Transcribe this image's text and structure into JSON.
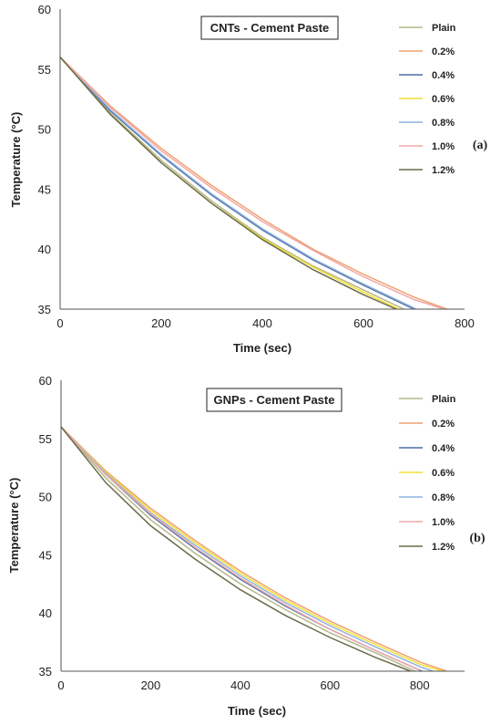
{
  "chart_data": [
    {
      "type": "line",
      "title": "CNTs - Cement Paste",
      "panel_label": "(a)",
      "xlabel": "Time (sec)",
      "ylabel": "Temperature (°C)",
      "xlim": [
        0,
        800
      ],
      "ylim": [
        35,
        60
      ],
      "xticks": [
        0,
        200,
        400,
        600,
        800
      ],
      "yticks": [
        35,
        40,
        45,
        50,
        55,
        60
      ],
      "grid": false,
      "legend_position": "right",
      "series": [
        {
          "name": "Plain",
          "color": "#b5b78a",
          "x": [
            0,
            100,
            200,
            300,
            400,
            500,
            600,
            680
          ],
          "y": [
            56,
            51.3,
            47.4,
            44.0,
            41.0,
            38.6,
            36.6,
            35.0
          ]
        },
        {
          "name": "0.2%",
          "color": "#f0a070",
          "x": [
            0,
            100,
            200,
            300,
            400,
            500,
            600,
            700,
            765
          ],
          "y": [
            56,
            51.9,
            48.4,
            45.3,
            42.5,
            40.0,
            37.9,
            36.0,
            35.0
          ]
        },
        {
          "name": "0.4%",
          "color": "#4a6fa5",
          "x": [
            0,
            100,
            200,
            300,
            400,
            500,
            600,
            700
          ],
          "y": [
            56,
            51.5,
            47.8,
            44.5,
            41.6,
            39.1,
            37.0,
            35.0
          ]
        },
        {
          "name": "0.6%",
          "color": "#f2e035",
          "x": [
            0,
            100,
            200,
            300,
            400,
            500,
            600,
            670
          ],
          "y": [
            56,
            51.2,
            47.2,
            43.8,
            40.9,
            38.5,
            36.4,
            35.0
          ]
        },
        {
          "name": "0.8%",
          "color": "#8fb3e0",
          "x": [
            0,
            100,
            200,
            300,
            400,
            500,
            600,
            705
          ],
          "y": [
            56,
            51.6,
            47.9,
            44.6,
            41.7,
            39.2,
            37.1,
            35.0
          ]
        },
        {
          "name": "1.0%",
          "color": "#f0a8a8",
          "x": [
            0,
            100,
            200,
            300,
            400,
            500,
            600,
            700,
            760
          ],
          "y": [
            56,
            51.8,
            48.2,
            45.1,
            42.3,
            39.9,
            37.7,
            35.8,
            35.0
          ]
        },
        {
          "name": "1.2%",
          "color": "#6b6b4a",
          "x": [
            0,
            100,
            200,
            300,
            400,
            500,
            600,
            665
          ],
          "y": [
            56,
            51.2,
            47.2,
            43.8,
            40.8,
            38.3,
            36.2,
            35.0
          ]
        }
      ]
    },
    {
      "type": "line",
      "title": "GNPs - Cement Paste",
      "panel_label": "(b)",
      "xlabel": "Time (sec)",
      "ylabel": "Temperature (°C)",
      "xlim": [
        0,
        900
      ],
      "ylim": [
        35,
        60
      ],
      "xticks": [
        0,
        200,
        400,
        600,
        800
      ],
      "yticks": [
        35,
        40,
        45,
        50,
        55,
        60
      ],
      "grid": false,
      "legend_position": "right",
      "series": [
        {
          "name": "Plain",
          "color": "#b5b78a",
          "x": [
            0,
            100,
            200,
            300,
            400,
            500,
            600,
            700,
            790
          ],
          "y": [
            56,
            51.6,
            48.0,
            45.1,
            42.5,
            40.3,
            38.3,
            36.6,
            35.0
          ]
        },
        {
          "name": "0.2%",
          "color": "#f0a070",
          "x": [
            0,
            100,
            200,
            300,
            400,
            500,
            600,
            700,
            800,
            860
          ],
          "y": [
            56,
            52.2,
            49.0,
            46.2,
            43.6,
            41.3,
            39.3,
            37.5,
            35.8,
            35.0
          ]
        },
        {
          "name": "0.4%",
          "color": "#4a6fa5",
          "x": [
            0,
            100,
            200,
            300,
            400,
            500,
            600,
            700,
            805
          ],
          "y": [
            56,
            51.9,
            48.4,
            45.5,
            42.9,
            40.6,
            38.6,
            36.8,
            35.0
          ]
        },
        {
          "name": "0.6%",
          "color": "#f2e035",
          "x": [
            0,
            100,
            200,
            300,
            400,
            500,
            600,
            700,
            800,
            850
          ],
          "y": [
            56,
            52.1,
            48.8,
            46.0,
            43.4,
            41.1,
            39.1,
            37.3,
            35.6,
            35.0
          ]
        },
        {
          "name": "0.8%",
          "color": "#8fb3e0",
          "x": [
            0,
            100,
            200,
            300,
            400,
            500,
            600,
            700,
            800,
            830
          ],
          "y": [
            56,
            52.0,
            48.6,
            45.8,
            43.2,
            40.9,
            38.9,
            37.1,
            35.4,
            35.0
          ]
        },
        {
          "name": "1.0%",
          "color": "#f0a8a8",
          "x": [
            0,
            100,
            200,
            300,
            400,
            500,
            600,
            700,
            800
          ],
          "y": [
            56,
            51.9,
            48.5,
            45.6,
            43.0,
            40.7,
            38.6,
            36.8,
            35.1
          ]
        },
        {
          "name": "1.2%",
          "color": "#6b6b4a",
          "x": [
            0,
            100,
            200,
            300,
            400,
            500,
            600,
            700,
            780
          ],
          "y": [
            56,
            51.2,
            47.5,
            44.6,
            42.0,
            39.8,
            37.9,
            36.2,
            35.0
          ]
        }
      ]
    }
  ]
}
